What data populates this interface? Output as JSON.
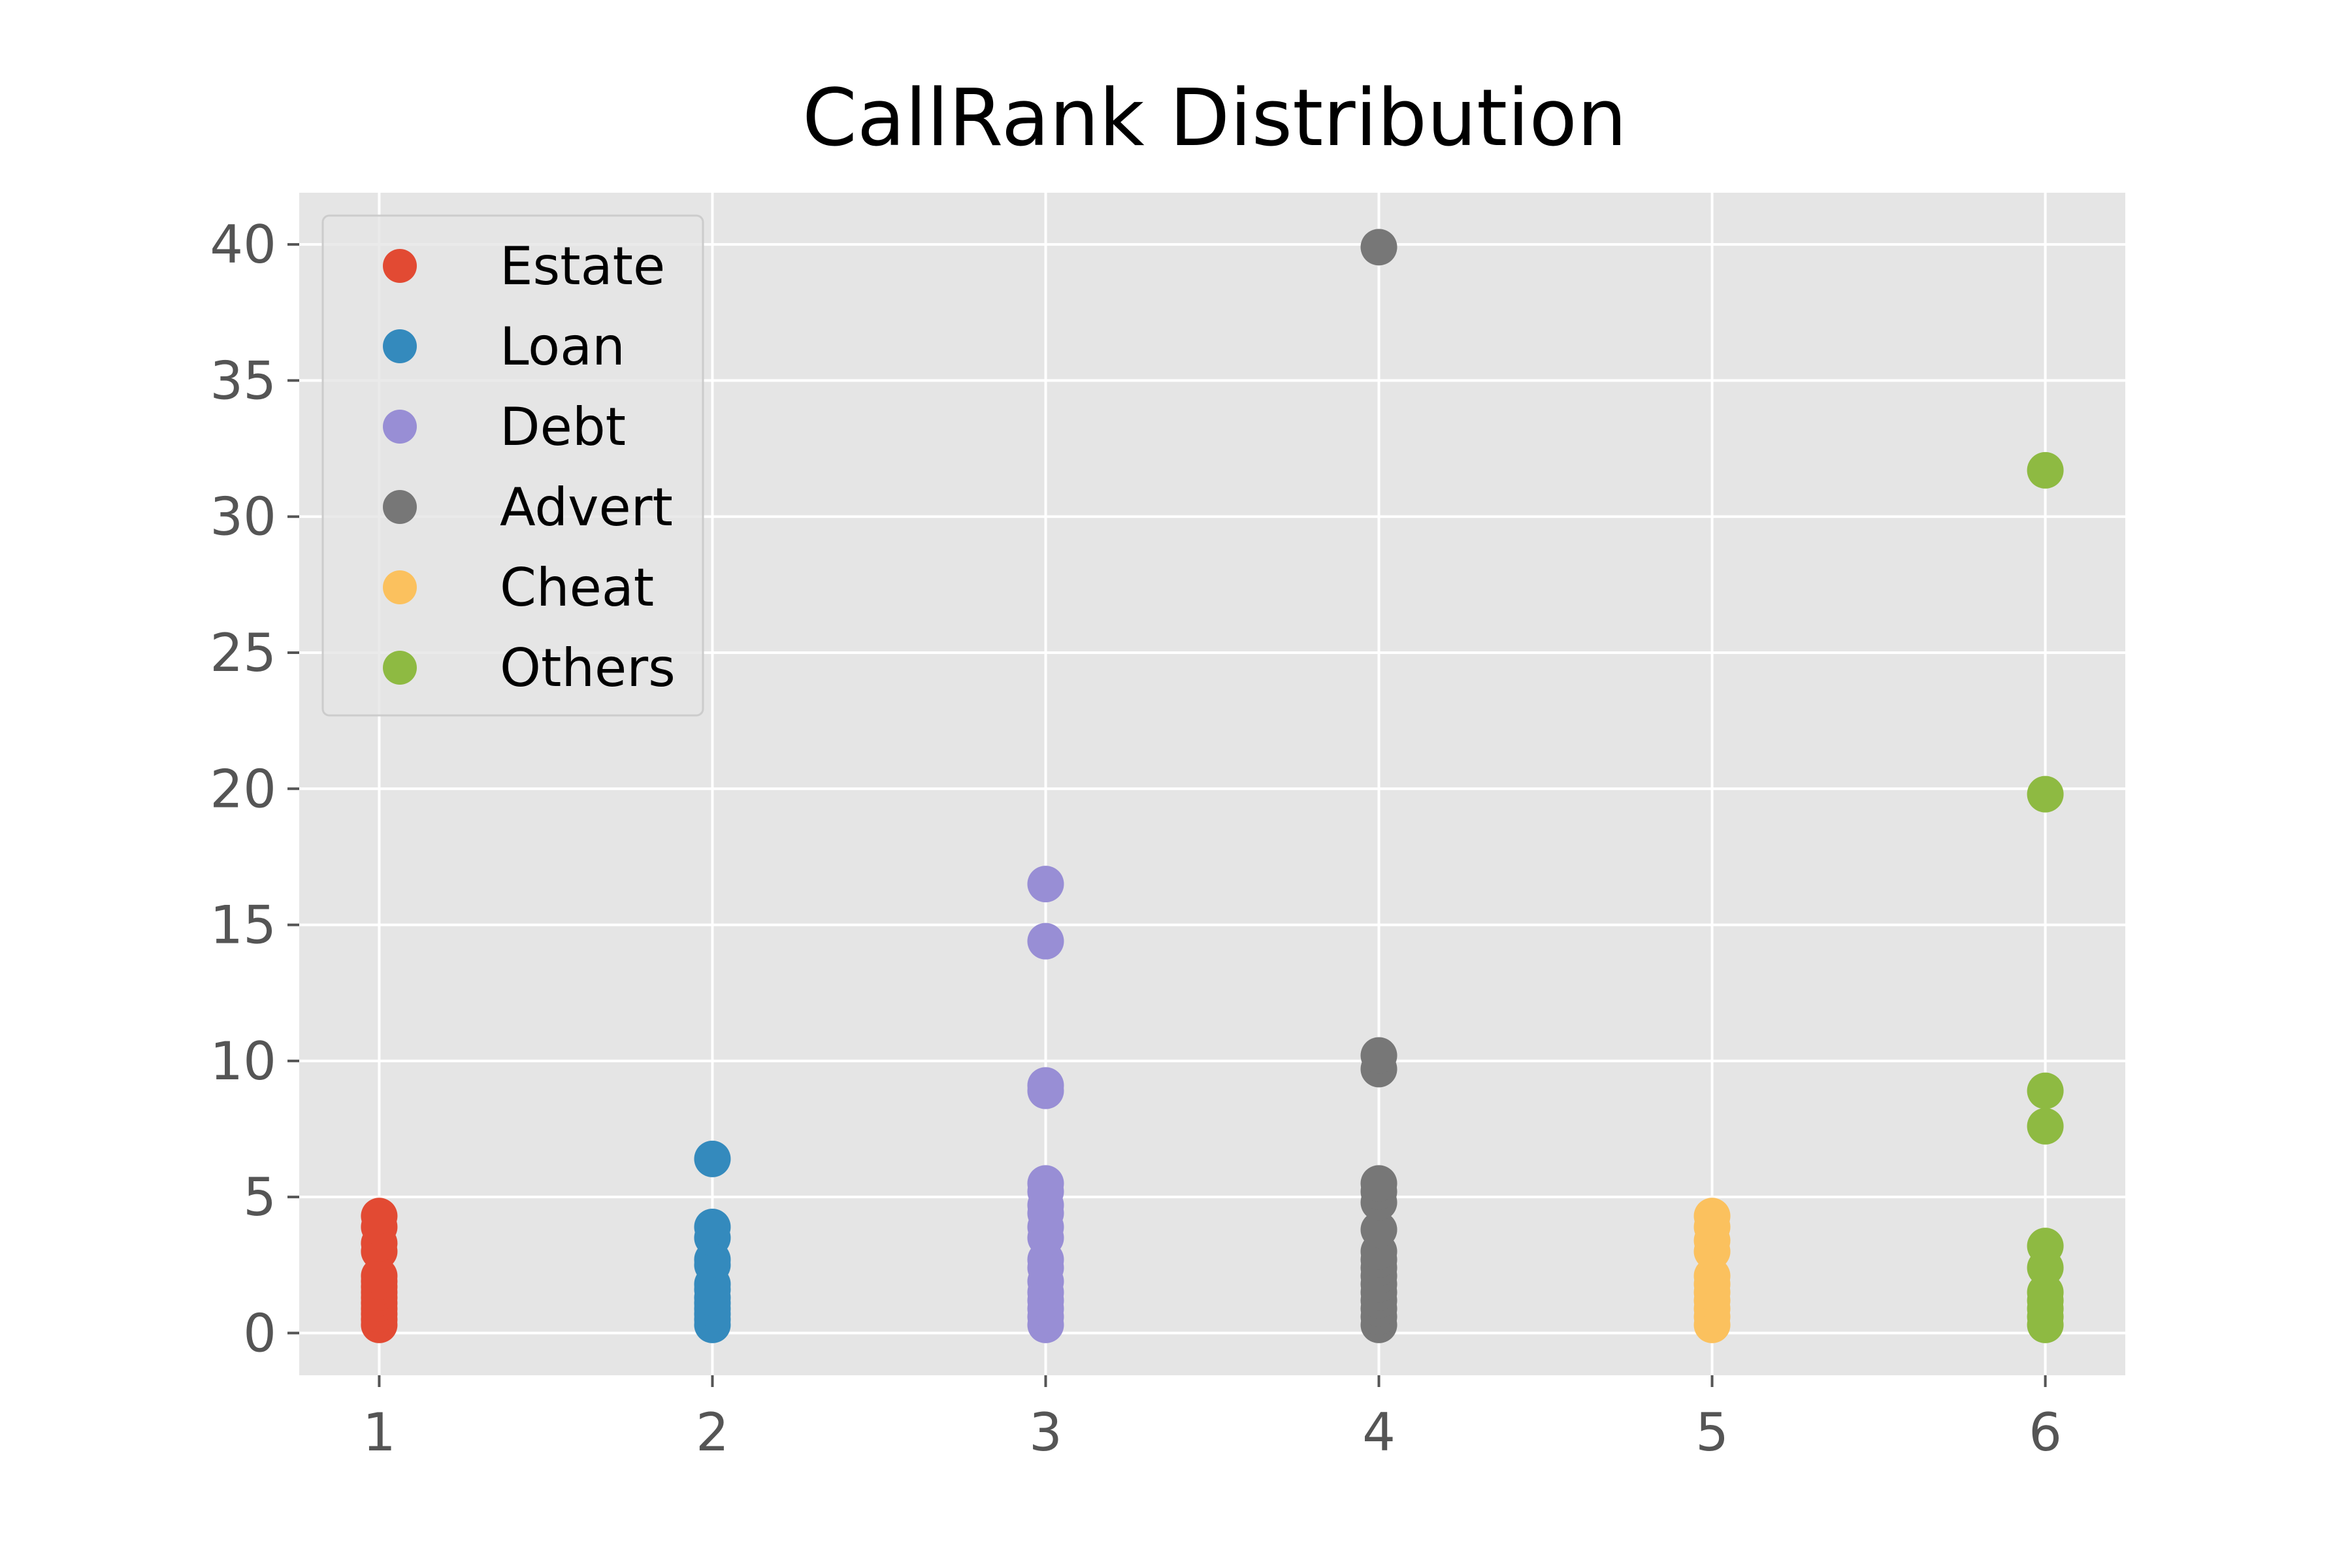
{
  "chart_data": {
    "type": "scatter",
    "title": "CallRank Distribution",
    "xlabel": "",
    "ylabel": "",
    "xlim": [
      0.76,
      6.24
    ],
    "ylim": [
      -1.55,
      41.9
    ],
    "x_ticks": [
      1,
      2,
      3,
      4,
      5,
      6
    ],
    "y_ticks": [
      0,
      5,
      10,
      15,
      20,
      25,
      30,
      35,
      40
    ],
    "grid": true,
    "legend_position": "top-left",
    "style": {
      "plot_background": "#e5e5e5",
      "grid_color": "#ffffff",
      "tick_label_color": "#555555",
      "title_color": "#000000"
    },
    "series": [
      {
        "name": "Estate",
        "color": "#e24a33",
        "points": [
          {
            "x": 1,
            "y": 0.3
          },
          {
            "x": 1,
            "y": 0.5
          },
          {
            "x": 1,
            "y": 0.7
          },
          {
            "x": 1,
            "y": 0.9
          },
          {
            "x": 1,
            "y": 1.1
          },
          {
            "x": 1,
            "y": 1.3
          },
          {
            "x": 1,
            "y": 1.5
          },
          {
            "x": 1,
            "y": 1.7
          },
          {
            "x": 1,
            "y": 1.9
          },
          {
            "x": 1,
            "y": 2.1
          },
          {
            "x": 1,
            "y": 3.0
          },
          {
            "x": 1,
            "y": 3.3
          },
          {
            "x": 1,
            "y": 3.9
          },
          {
            "x": 1,
            "y": 4.3
          }
        ]
      },
      {
        "name": "Loan",
        "color": "#348abd",
        "points": [
          {
            "x": 2,
            "y": 0.3
          },
          {
            "x": 2,
            "y": 0.5
          },
          {
            "x": 2,
            "y": 0.7
          },
          {
            "x": 2,
            "y": 0.9
          },
          {
            "x": 2,
            "y": 1.1
          },
          {
            "x": 2,
            "y": 1.3
          },
          {
            "x": 2,
            "y": 1.6
          },
          {
            "x": 2,
            "y": 1.8
          },
          {
            "x": 2,
            "y": 2.5
          },
          {
            "x": 2,
            "y": 2.7
          },
          {
            "x": 2,
            "y": 3.5
          },
          {
            "x": 2,
            "y": 3.9
          },
          {
            "x": 2,
            "y": 6.4
          }
        ]
      },
      {
        "name": "Debt",
        "color": "#988ed5",
        "points": [
          {
            "x": 3,
            "y": 0.3
          },
          {
            "x": 3,
            "y": 0.6
          },
          {
            "x": 3,
            "y": 0.9
          },
          {
            "x": 3,
            "y": 1.2
          },
          {
            "x": 3,
            "y": 1.5
          },
          {
            "x": 3,
            "y": 1.9
          },
          {
            "x": 3,
            "y": 2.4
          },
          {
            "x": 3,
            "y": 2.7
          },
          {
            "x": 3,
            "y": 3.5
          },
          {
            "x": 3,
            "y": 3.9
          },
          {
            "x": 3,
            "y": 4.4
          },
          {
            "x": 3,
            "y": 4.7
          },
          {
            "x": 3,
            "y": 5.2
          },
          {
            "x": 3,
            "y": 5.5
          },
          {
            "x": 3,
            "y": 8.9
          },
          {
            "x": 3,
            "y": 9.1
          },
          {
            "x": 3,
            "y": 14.4
          },
          {
            "x": 3,
            "y": 16.5
          }
        ]
      },
      {
        "name": "Advert",
        "color": "#777777",
        "points": [
          {
            "x": 4,
            "y": 0.3
          },
          {
            "x": 4,
            "y": 0.6
          },
          {
            "x": 4,
            "y": 0.9
          },
          {
            "x": 4,
            "y": 1.2
          },
          {
            "x": 4,
            "y": 1.5
          },
          {
            "x": 4,
            "y": 1.8
          },
          {
            "x": 4,
            "y": 2.1
          },
          {
            "x": 4,
            "y": 2.4
          },
          {
            "x": 4,
            "y": 2.7
          },
          {
            "x": 4,
            "y": 3.0
          },
          {
            "x": 4,
            "y": 3.8
          },
          {
            "x": 4,
            "y": 4.8
          },
          {
            "x": 4,
            "y": 5.2
          },
          {
            "x": 4,
            "y": 5.5
          },
          {
            "x": 4,
            "y": 9.7
          },
          {
            "x": 4,
            "y": 10.2
          },
          {
            "x": 4,
            "y": 39.9
          }
        ]
      },
      {
        "name": "Cheat",
        "color": "#fbc15e",
        "points": [
          {
            "x": 5,
            "y": 0.3
          },
          {
            "x": 5,
            "y": 0.6
          },
          {
            "x": 5,
            "y": 0.9
          },
          {
            "x": 5,
            "y": 1.2
          },
          {
            "x": 5,
            "y": 1.5
          },
          {
            "x": 5,
            "y": 1.8
          },
          {
            "x": 5,
            "y": 2.1
          },
          {
            "x": 5,
            "y": 3.0
          },
          {
            "x": 5,
            "y": 3.4
          },
          {
            "x": 5,
            "y": 3.9
          },
          {
            "x": 5,
            "y": 4.3
          }
        ]
      },
      {
        "name": "Others",
        "color": "#8eba42",
        "points": [
          {
            "x": 6,
            "y": 0.3
          },
          {
            "x": 6,
            "y": 0.6
          },
          {
            "x": 6,
            "y": 0.9
          },
          {
            "x": 6,
            "y": 1.2
          },
          {
            "x": 6,
            "y": 1.5
          },
          {
            "x": 6,
            "y": 2.4
          },
          {
            "x": 6,
            "y": 3.2
          },
          {
            "x": 6,
            "y": 7.6
          },
          {
            "x": 6,
            "y": 8.9
          },
          {
            "x": 6,
            "y": 19.8
          },
          {
            "x": 6,
            "y": 31.7
          }
        ]
      }
    ]
  }
}
